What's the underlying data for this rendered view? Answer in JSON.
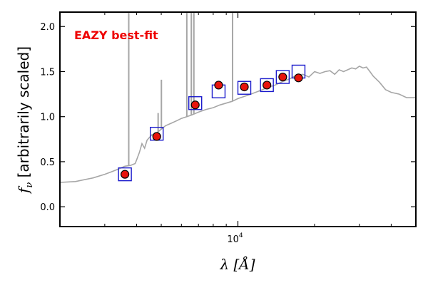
{
  "chart_data": {
    "type": "scatter",
    "annotation": "EAZY best-fit",
    "annotation_color": "#ee0000",
    "xlabel_main": "λ [",
    "xlabel_unit": "Å",
    "xlabel_end": "]",
    "ylabel_var": "f",
    "ylabel_sub": "ν",
    "ylabel_rest": " [arbitrarily scaled]",
    "x_scale": "log",
    "xlim": [
      2000,
      50000
    ],
    "ylim": [
      -0.22,
      2.16
    ],
    "y_ticks": [
      0.0,
      0.5,
      1.0,
      1.5,
      2.0
    ],
    "y_tick_labels": [
      "0.0",
      "0.5",
      "1.0",
      "1.5",
      "2.0"
    ],
    "x_major_ticks": [
      10000
    ],
    "x_major_tick_labels_base": "10",
    "x_major_tick_labels_exp": "4",
    "x_minor_ticks": [
      3000,
      4000,
      5000,
      6000,
      7000,
      8000,
      9000,
      20000,
      30000,
      40000
    ],
    "grid": false,
    "colors": {
      "model": "#a6a6a6",
      "model_photometry_box": "#1a1acc",
      "observed_fill": "#e8140c",
      "observed_edge": "#000000"
    },
    "model_spectrum": {
      "name": "model",
      "x": [
        2000,
        2300,
        2700,
        3000,
        3200,
        3400,
        3600,
        3800,
        3950,
        4000,
        4100,
        4200,
        4300,
        4400,
        4600,
        4700,
        4800,
        5000,
        5200,
        5500,
        5800,
        6000,
        6300,
        6600,
        7000,
        7500,
        8000,
        8500,
        9000,
        9500,
        10000,
        11000,
        12000,
        13000,
        14000,
        15000,
        16000,
        17000,
        18000,
        19000,
        20000,
        21000,
        22000,
        23000,
        24000,
        25000,
        26000,
        27000,
        28000,
        29000,
        30000,
        31000,
        32000,
        33000,
        34000,
        36000,
        38000,
        40000,
        43000,
        46000,
        50000
      ],
      "y": [
        0.27,
        0.28,
        0.32,
        0.36,
        0.39,
        0.42,
        0.45,
        0.46,
        0.48,
        0.52,
        0.6,
        0.7,
        0.65,
        0.74,
        0.8,
        0.78,
        0.82,
        0.86,
        0.9,
        0.93,
        0.96,
        0.98,
        1.0,
        1.02,
        1.05,
        1.08,
        1.1,
        1.13,
        1.15,
        1.17,
        1.2,
        1.24,
        1.28,
        1.32,
        1.35,
        1.39,
        1.42,
        1.46,
        1.47,
        1.44,
        1.5,
        1.48,
        1.5,
        1.51,
        1.47,
        1.52,
        1.5,
        1.52,
        1.54,
        1.53,
        1.56,
        1.54,
        1.55,
        1.5,
        1.45,
        1.38,
        1.3,
        1.27,
        1.25,
        1.21,
        1.21
      ]
    },
    "emission_lines": [
      {
        "x": 3727,
        "peak": 2.16
      },
      {
        "x": 4861,
        "peak": 1.04
      },
      {
        "x": 5007,
        "peak": 1.41
      },
      {
        "x": 6300,
        "peak": 2.16
      },
      {
        "x": 6563,
        "peak": 2.16
      },
      {
        "x": 6716,
        "peak": 2.16
      },
      {
        "x": 9530,
        "peak": 2.16
      }
    ],
    "series": [
      {
        "name": "model photometry",
        "x": [
          3600,
          4800,
          6800,
          8400,
          10600,
          13000,
          15000,
          17300
        ],
        "y": [
          0.36,
          0.81,
          1.15,
          1.28,
          1.32,
          1.35,
          1.44,
          1.5
        ]
      },
      {
        "name": "observed",
        "x": [
          3600,
          4800,
          6800,
          8400,
          10600,
          13000,
          15000,
          17300
        ],
        "y": [
          0.36,
          0.78,
          1.13,
          1.35,
          1.33,
          1.35,
          1.44,
          1.43
        ],
        "yerr": [
          0.01,
          0.01,
          0.01,
          0.03,
          0.02,
          0.03,
          0.04,
          0.02
        ]
      }
    ]
  }
}
